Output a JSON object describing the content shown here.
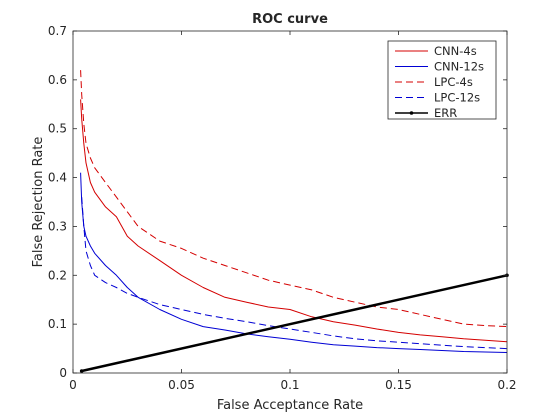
{
  "chart_data": {
    "type": "line",
    "title": "ROC curve",
    "xlabel": "False Acceptance Rate",
    "ylabel": "False Rejection Rate",
    "xlim": [
      0,
      0.2
    ],
    "ylim": [
      0,
      0.7
    ],
    "xticks": [
      0,
      0.05,
      0.1,
      0.15,
      0.2
    ],
    "xtick_labels": [
      "0",
      "0.05",
      "0.1",
      "0.15",
      "0.2"
    ],
    "yticks": [
      0,
      0.1,
      0.2,
      0.3,
      0.4,
      0.5,
      0.6,
      0.7
    ],
    "ytick_labels": [
      "0",
      "0.1",
      "0.2",
      "0.3",
      "0.4",
      "0.5",
      "0.6",
      "0.7"
    ],
    "grid": false,
    "legend_position": "top-right",
    "series": [
      {
        "name": "CNN-4s",
        "color": "#d40000",
        "style": "solid",
        "x": [
          0.0035,
          0.004,
          0.005,
          0.006,
          0.008,
          0.01,
          0.015,
          0.02,
          0.025,
          0.03,
          0.04,
          0.05,
          0.06,
          0.07,
          0.08,
          0.09,
          0.1,
          0.11,
          0.12,
          0.13,
          0.14,
          0.15,
          0.16,
          0.17,
          0.18,
          0.19,
          0.2
        ],
        "y": [
          0.56,
          0.52,
          0.47,
          0.43,
          0.39,
          0.37,
          0.34,
          0.32,
          0.28,
          0.26,
          0.23,
          0.2,
          0.175,
          0.155,
          0.145,
          0.135,
          0.13,
          0.115,
          0.105,
          0.098,
          0.09,
          0.083,
          0.078,
          0.074,
          0.07,
          0.067,
          0.064
        ]
      },
      {
        "name": "CNN-12s",
        "color": "#0000d4",
        "style": "solid",
        "x": [
          0.0035,
          0.004,
          0.005,
          0.006,
          0.008,
          0.01,
          0.015,
          0.02,
          0.025,
          0.03,
          0.04,
          0.05,
          0.06,
          0.07,
          0.08,
          0.09,
          0.1,
          0.11,
          0.12,
          0.13,
          0.14,
          0.15,
          0.16,
          0.17,
          0.18,
          0.19,
          0.2
        ],
        "y": [
          0.41,
          0.35,
          0.3,
          0.28,
          0.26,
          0.245,
          0.22,
          0.2,
          0.175,
          0.155,
          0.13,
          0.11,
          0.095,
          0.088,
          0.08,
          0.074,
          0.069,
          0.063,
          0.058,
          0.055,
          0.052,
          0.05,
          0.048,
          0.046,
          0.044,
          0.043,
          0.042
        ]
      },
      {
        "name": "LPC-4s",
        "color": "#d40000",
        "style": "dashed",
        "x": [
          0.0035,
          0.004,
          0.005,
          0.006,
          0.008,
          0.01,
          0.015,
          0.02,
          0.025,
          0.03,
          0.04,
          0.05,
          0.06,
          0.07,
          0.08,
          0.09,
          0.1,
          0.11,
          0.12,
          0.13,
          0.14,
          0.15,
          0.16,
          0.17,
          0.18,
          0.19,
          0.2
        ],
        "y": [
          0.62,
          0.57,
          0.51,
          0.47,
          0.44,
          0.42,
          0.39,
          0.36,
          0.33,
          0.3,
          0.27,
          0.255,
          0.235,
          0.22,
          0.205,
          0.19,
          0.18,
          0.17,
          0.155,
          0.145,
          0.135,
          0.13,
          0.12,
          0.11,
          0.1,
          0.097,
          0.095
        ]
      },
      {
        "name": "LPC-12s",
        "color": "#0000d4",
        "style": "dashed",
        "x": [
          0.004,
          0.005,
          0.006,
          0.008,
          0.01,
          0.015,
          0.02,
          0.025,
          0.03,
          0.04,
          0.05,
          0.06,
          0.07,
          0.08,
          0.09,
          0.1,
          0.11,
          0.12,
          0.13,
          0.14,
          0.15,
          0.16,
          0.17,
          0.18,
          0.19,
          0.2
        ],
        "y": [
          0.36,
          0.3,
          0.25,
          0.22,
          0.2,
          0.185,
          0.175,
          0.163,
          0.155,
          0.14,
          0.13,
          0.12,
          0.112,
          0.105,
          0.097,
          0.09,
          0.083,
          0.076,
          0.07,
          0.066,
          0.063,
          0.06,
          0.057,
          0.054,
          0.052,
          0.05
        ]
      },
      {
        "name": "ERR",
        "color": "#000000",
        "style": "solid-marker",
        "x": [
          0.004,
          0.2
        ],
        "y": [
          0.004,
          0.2
        ]
      }
    ]
  }
}
